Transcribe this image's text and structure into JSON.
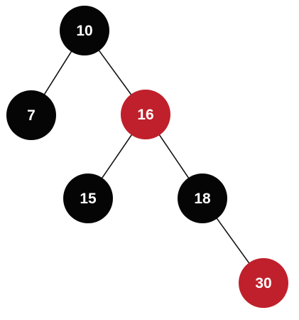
{
  "colors": {
    "black": "#050505",
    "red": "#c0202b",
    "edge": "#111111",
    "text": "#ffffff"
  },
  "nodes": [
    {
      "id": "n10",
      "label": "10",
      "color": "black"
    },
    {
      "id": "n7",
      "label": "7",
      "color": "black"
    },
    {
      "id": "n16",
      "label": "16",
      "color": "red"
    },
    {
      "id": "n15",
      "label": "15",
      "color": "black"
    },
    {
      "id": "n18",
      "label": "18",
      "color": "black"
    },
    {
      "id": "n30",
      "label": "30",
      "color": "red"
    }
  ],
  "edges": [
    {
      "from": "n10",
      "to": "n7"
    },
    {
      "from": "n10",
      "to": "n16"
    },
    {
      "from": "n16",
      "to": "n15"
    },
    {
      "from": "n16",
      "to": "n18"
    },
    {
      "from": "n18",
      "to": "n30"
    }
  ]
}
